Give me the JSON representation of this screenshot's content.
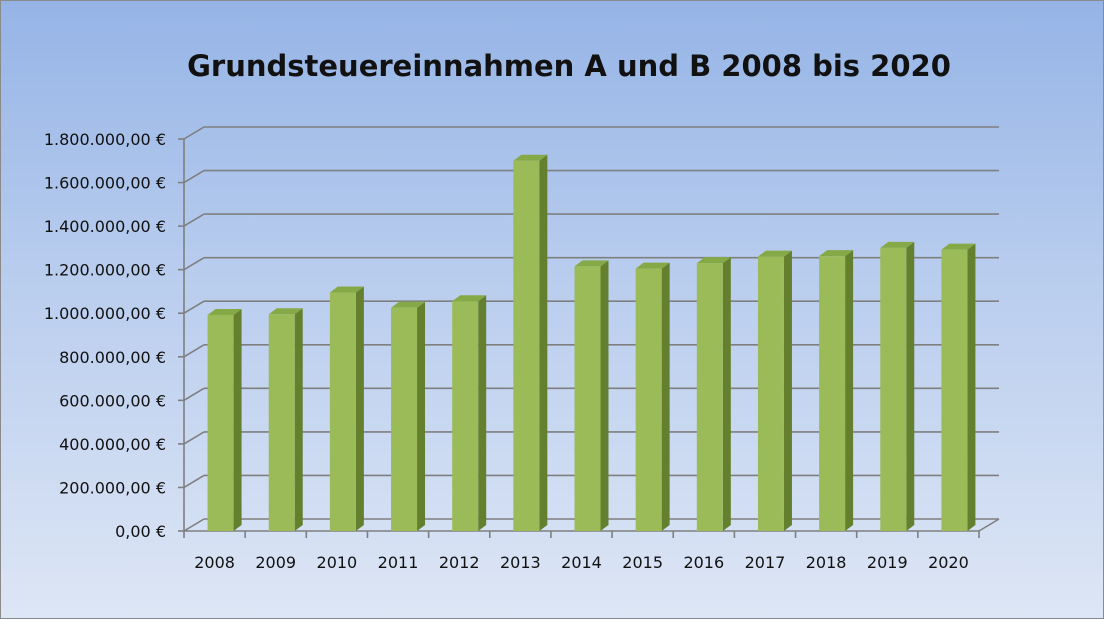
{
  "chart_data": {
    "type": "bar",
    "title": "Grundsteuereinnahmen A und B 2008 bis 2020",
    "xlabel": "",
    "ylabel": "",
    "categories": [
      "2008",
      "2009",
      "2010",
      "2011",
      "2012",
      "2013",
      "2014",
      "2015",
      "2016",
      "2017",
      "2018",
      "2019",
      "2020"
    ],
    "values": [
      992000,
      995000,
      1095000,
      1025000,
      1055000,
      1700000,
      1215000,
      1205000,
      1230000,
      1260000,
      1262000,
      1300000,
      1292000
    ],
    "ylim": [
      0,
      1800000
    ],
    "yticks": [
      0,
      200000,
      400000,
      600000,
      800000,
      1000000,
      1200000,
      1400000,
      1600000,
      1800000
    ],
    "ytick_labels": [
      "0,00 €",
      "200.000,00 €",
      "400.000,00 €",
      "600.000,00 €",
      "800.000,00 €",
      "1.000.000,00 €",
      "1.200.000,00 €",
      "1.400.000,00 €",
      "1.600.000,00 €",
      "1.800.000,00 €"
    ],
    "grid": true,
    "legend": "none",
    "three_d": true,
    "colors": {
      "bar_front": "#9bbb59",
      "bar_top": "#86a948",
      "bar_side": "#64802f",
      "grid": "#7f7f7f",
      "background_top": "#95b4e6",
      "background_bottom": "#dde6f5"
    }
  }
}
